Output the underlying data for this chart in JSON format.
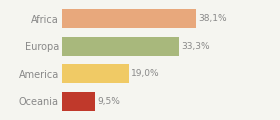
{
  "categories": [
    "Oceania",
    "America",
    "Europa",
    "Africa"
  ],
  "values": [
    9.5,
    19.0,
    33.3,
    38.1
  ],
  "labels": [
    "9,5%",
    "19,0%",
    "33,3%",
    "38,1%"
  ],
  "bar_colors": [
    "#c0392b",
    "#f0ca65",
    "#a8b87c",
    "#e8a87c"
  ],
  "background_color": "#f5f5f0",
  "xlim": [
    0,
    50
  ],
  "bar_height": 0.68,
  "label_fontsize": 6.5,
  "ytick_fontsize": 7.0,
  "ytick_color": "#888888",
  "label_color": "#888888"
}
